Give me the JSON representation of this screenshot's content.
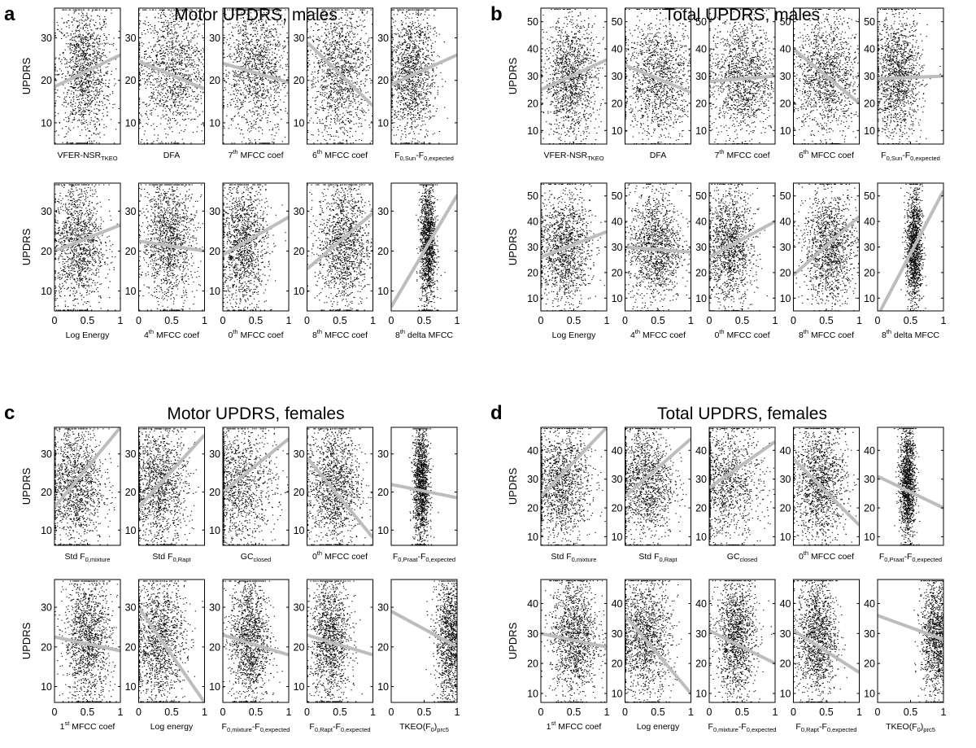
{
  "colors": {
    "points": "#000000",
    "trend": "#bdbdbd",
    "axes": "#000000"
  },
  "chart_data": [
    {
      "letter": "a",
      "title": "Motor UPDRS, males",
      "type": "scatter",
      "ylabel": "UPDRS",
      "xlim": [
        0,
        1
      ],
      "ylim": [
        5,
        37
      ],
      "xticks": [
        "0",
        "0.5",
        "1"
      ],
      "yticks": [
        10,
        20,
        30
      ],
      "rows": [
        [
          {
            "xlabel": "VFER-NSR",
            "xsub": "TKEO",
            "trend": [
              [
                0,
                18.5
              ],
              [
                1,
                26
              ]
            ],
            "cx": 0.45,
            "sx": 0.2,
            "cy": 22,
            "sy": 8
          },
          {
            "xlabel": "DFA",
            "trend": [
              [
                0,
                24.5
              ],
              [
                1,
                18
              ]
            ],
            "cx": 0.5,
            "sx": 0.28,
            "cy": 23,
            "sy": 8
          },
          {
            "xpre": "7",
            "xsup": "th",
            "xlabel": " MFCC coef",
            "trend": [
              [
                0,
                24
              ],
              [
                1,
                19.5
              ]
            ],
            "cx": 0.5,
            "sx": 0.25,
            "cy": 23,
            "sy": 8
          },
          {
            "xpre": "6",
            "xsup": "th",
            "xlabel": " MFCC coef",
            "trend": [
              [
                0,
                29
              ],
              [
                1,
                14
              ]
            ],
            "cx": 0.5,
            "sx": 0.25,
            "cy": 22,
            "sy": 8
          },
          {
            "xlabel": "F",
            "xsub": "0,Sun",
            "xlabel2": "-F",
            "xsub2": "0,expected",
            "trend": [
              [
                0,
                19
              ],
              [
                1,
                26
              ]
            ],
            "cx": 0.3,
            "sx": 0.18,
            "cy": 22,
            "sy": 8
          }
        ],
        [
          {
            "xlabel": "Log Energy",
            "trend": [
              [
                0,
                20
              ],
              [
                1,
                26.5
              ]
            ],
            "cx": 0.35,
            "sx": 0.2,
            "cy": 22,
            "sy": 8
          },
          {
            "xpre": "4",
            "xsup": "th",
            "xlabel": " MFCC coef",
            "trend": [
              [
                0,
                22.5
              ],
              [
                1,
                20
              ]
            ],
            "cx": 0.45,
            "sx": 0.2,
            "cy": 23,
            "sy": 8
          },
          {
            "xpre": "0",
            "xsup": "th",
            "xlabel": " MFCC coef",
            "trend": [
              [
                0,
                19
              ],
              [
                1,
                28.5
              ]
            ],
            "cx": 0.3,
            "sx": 0.18,
            "cy": 22,
            "sy": 8
          },
          {
            "xpre": "8",
            "xsup": "th",
            "xlabel": " MFCC coef",
            "trend": [
              [
                0,
                15.5
              ],
              [
                1,
                29.5
              ]
            ],
            "cx": 0.55,
            "sx": 0.2,
            "cy": 22,
            "sy": 8
          },
          {
            "xpre": "8",
            "xsup": "th",
            "xlabel": " delta MFCC",
            "trend": [
              [
                0,
                6
              ],
              [
                1,
                34
              ]
            ],
            "cx": 0.55,
            "sx": 0.06,
            "cy": 22,
            "sy": 8
          }
        ]
      ]
    },
    {
      "letter": "b",
      "title": "Total UPDRS, males",
      "type": "scatter",
      "ylabel": "UPDRS",
      "xlim": [
        0,
        1
      ],
      "ylim": [
        5,
        55
      ],
      "xticks": [
        "0",
        "0.5",
        "1"
      ],
      "yticks": [
        10,
        20,
        30,
        40,
        50
      ],
      "rows": [
        [
          {
            "xlabel": "VFER-NSR",
            "xsub": "TKEO",
            "trend": [
              [
                0,
                25
              ],
              [
                1,
                36
              ]
            ],
            "cx": 0.45,
            "sx": 0.2,
            "cy": 29,
            "sy": 11
          },
          {
            "xlabel": "DFA",
            "trend": [
              [
                0,
                34
              ],
              [
                1,
                24
              ]
            ],
            "cx": 0.5,
            "sx": 0.28,
            "cy": 30,
            "sy": 11
          },
          {
            "xpre": "7",
            "xsup": "th",
            "xlabel": " MFCC coef",
            "trend": [
              [
                0,
                28
              ],
              [
                1,
                30
              ]
            ],
            "cx": 0.5,
            "sx": 0.25,
            "cy": 30,
            "sy": 11
          },
          {
            "xpre": "6",
            "xsup": "th",
            "xlabel": " MFCC coef",
            "trend": [
              [
                0,
                40
              ],
              [
                1,
                20
              ]
            ],
            "cx": 0.5,
            "sx": 0.25,
            "cy": 30,
            "sy": 11
          },
          {
            "xlabel": "F",
            "xsub": "0,Sun",
            "xlabel2": "-F",
            "xsub2": "0,expected",
            "trend": [
              [
                0,
                29
              ],
              [
                1,
                30
              ]
            ],
            "cx": 0.3,
            "sx": 0.18,
            "cy": 30,
            "sy": 11
          }
        ],
        [
          {
            "xlabel": "Log Energy",
            "trend": [
              [
                0,
                26
              ],
              [
                1,
                36
              ]
            ],
            "cx": 0.35,
            "sx": 0.2,
            "cy": 30,
            "sy": 11
          },
          {
            "xpre": "4",
            "xsup": "th",
            "xlabel": " MFCC coef",
            "trend": [
              [
                0,
                30
              ],
              [
                1,
                28
              ]
            ],
            "cx": 0.45,
            "sx": 0.2,
            "cy": 30,
            "sy": 11
          },
          {
            "xpre": "0",
            "xsup": "th",
            "xlabel": " MFCC coef",
            "trend": [
              [
                0,
                26
              ],
              [
                1,
                40
              ]
            ],
            "cx": 0.3,
            "sx": 0.18,
            "cy": 30,
            "sy": 11
          },
          {
            "xpre": "8",
            "xsup": "th",
            "xlabel": " MFCC coef",
            "trend": [
              [
                0,
                19
              ],
              [
                1,
                42
              ]
            ],
            "cx": 0.55,
            "sx": 0.2,
            "cy": 30,
            "sy": 11
          },
          {
            "xpre": "8",
            "xsup": "th",
            "xlabel": " delta MFCC",
            "trend": [
              [
                0,
                3
              ],
              [
                1,
                52
              ]
            ],
            "cx": 0.55,
            "sx": 0.06,
            "cy": 30,
            "sy": 11
          }
        ]
      ]
    },
    {
      "letter": "c",
      "title": "Motor UPDRS, females",
      "type": "scatter",
      "ylabel": "UPDRS",
      "xlim": [
        0,
        1
      ],
      "ylim": [
        6,
        37
      ],
      "xticks": [
        "0",
        "0.5",
        "1"
      ],
      "yticks": [
        10,
        20,
        30
      ],
      "rows": [
        [
          {
            "xlabel": "Std F",
            "xsub": "0,mixture",
            "trend": [
              [
                0,
                16
              ],
              [
                1,
                37
              ]
            ],
            "cx": 0.3,
            "sx": 0.22,
            "cy": 22,
            "sy": 8
          },
          {
            "xlabel": "Std F",
            "xsub": "0,Rapt",
            "trend": [
              [
                0,
                16
              ],
              [
                1,
                35
              ]
            ],
            "cx": 0.3,
            "sx": 0.22,
            "cy": 22,
            "sy": 8
          },
          {
            "xlabel": "GC",
            "xsub": "closed",
            "trend": [
              [
                0,
                20
              ],
              [
                1,
                34
              ]
            ],
            "cx": 0.2,
            "sx": 0.3,
            "cy": 22,
            "sy": 8
          },
          {
            "xpre": "0",
            "xsup": "th",
            "xlabel": " MFCC coef",
            "trend": [
              [
                0,
                29
              ],
              [
                1,
                8
              ]
            ],
            "cx": 0.4,
            "sx": 0.2,
            "cy": 22,
            "sy": 8
          },
          {
            "xlabel": "F",
            "xsub": "0,Praat",
            "xlabel2": "-F",
            "xsub2": "0,expected",
            "trend": [
              [
                0,
                22
              ],
              [
                1,
                18.5
              ]
            ],
            "cx": 0.45,
            "sx": 0.06,
            "cy": 22,
            "sy": 8
          }
        ],
        [
          {
            "xpre": "1",
            "xsup": "st",
            "xlabel": " MFCC coef",
            "trend": [
              [
                0,
                22.5
              ],
              [
                1,
                19
              ]
            ],
            "cx": 0.5,
            "sx": 0.18,
            "cy": 22,
            "sy": 8
          },
          {
            "xlabel": "Log energy",
            "trend": [
              [
                0,
                30
              ],
              [
                1,
                6
              ]
            ],
            "cx": 0.3,
            "sx": 0.2,
            "cy": 22,
            "sy": 8
          },
          {
            "xlabel": "F",
            "xsub": "0,mixture",
            "xlabel2": "-F",
            "xsub2": "0,expected",
            "trend": [
              [
                0,
                23
              ],
              [
                1,
                18
              ]
            ],
            "cx": 0.4,
            "sx": 0.15,
            "cy": 22,
            "sy": 8
          },
          {
            "xlabel": "F",
            "xsub": "0,Rapt",
            "xlabel2": "-F",
            "xsub2": "0,expected",
            "trend": [
              [
                0,
                23
              ],
              [
                1,
                18
              ]
            ],
            "cx": 0.35,
            "sx": 0.15,
            "cy": 22,
            "sy": 8
          },
          {
            "xlabel": "TKEO(F",
            "xsub": "0",
            "xlabel2": ")",
            "xsub2": "prc5",
            "trend": [
              [
                0,
                29
              ],
              [
                1,
                20
              ]
            ],
            "cx": 0.9,
            "sx": 0.12,
            "cy": 22,
            "sy": 8
          }
        ]
      ]
    },
    {
      "letter": "d",
      "title": "Total UPDRS, females",
      "type": "scatter",
      "ylabel": "UPDRS",
      "xlim": [
        0,
        1
      ],
      "ylim": [
        7,
        48
      ],
      "xticks": [
        "0",
        "0.5",
        "1"
      ],
      "yticks": [
        10,
        20,
        30,
        40
      ],
      "rows": [
        [
          {
            "xlabel": "Std F",
            "xsub": "0,mixture",
            "trend": [
              [
                0,
                24
              ],
              [
                1,
                48
              ]
            ],
            "cx": 0.3,
            "sx": 0.22,
            "cy": 29,
            "sy": 10
          },
          {
            "xlabel": "Std F",
            "xsub": "0,Rapt",
            "trend": [
              [
                0,
                24
              ],
              [
                1,
                44
              ]
            ],
            "cx": 0.3,
            "sx": 0.22,
            "cy": 29,
            "sy": 10
          },
          {
            "xlabel": "GC",
            "xsub": "closed",
            "trend": [
              [
                0,
                27
              ],
              [
                1,
                43
              ]
            ],
            "cx": 0.2,
            "sx": 0.3,
            "cy": 29,
            "sy": 10
          },
          {
            "xpre": "0",
            "xsup": "th",
            "xlabel": " MFCC coef",
            "trend": [
              [
                0,
                37
              ],
              [
                1,
                14
              ]
            ],
            "cx": 0.4,
            "sx": 0.2,
            "cy": 29,
            "sy": 10
          },
          {
            "xlabel": "F",
            "xsub": "0,Praat",
            "xlabel2": "-F",
            "xsub2": "0,expected",
            "trend": [
              [
                0,
                31
              ],
              [
                1,
                20
              ]
            ],
            "cx": 0.45,
            "sx": 0.06,
            "cy": 29,
            "sy": 10
          }
        ],
        [
          {
            "xpre": "1",
            "xsup": "st",
            "xlabel": " MFCC coef",
            "trend": [
              [
                0,
                30
              ],
              [
                1,
                25.5
              ]
            ],
            "cx": 0.5,
            "sx": 0.18,
            "cy": 29,
            "sy": 10
          },
          {
            "xlabel": "Log energy",
            "trend": [
              [
                0,
                36
              ],
              [
                1,
                10
              ]
            ],
            "cx": 0.3,
            "sx": 0.2,
            "cy": 29,
            "sy": 10
          },
          {
            "xlabel": "F",
            "xsub": "0,mixture",
            "xlabel2": "-F",
            "xsub2": "0,expected",
            "trend": [
              [
                0,
                31
              ],
              [
                1,
                20
              ]
            ],
            "cx": 0.4,
            "sx": 0.15,
            "cy": 29,
            "sy": 10
          },
          {
            "xlabel": "F",
            "xsub": "0,Rapt",
            "xlabel2": "-F",
            "xsub2": "0,expected",
            "trend": [
              [
                0,
                31
              ],
              [
                1,
                17
              ]
            ],
            "cx": 0.35,
            "sx": 0.15,
            "cy": 29,
            "sy": 10
          },
          {
            "xlabel": "TKEO(F",
            "xsub": "0",
            "xlabel2": ")",
            "xsub2": "prc5",
            "trend": [
              [
                0,
                36
              ],
              [
                1,
                28
              ]
            ],
            "cx": 0.9,
            "sx": 0.12,
            "cy": 29,
            "sy": 10
          }
        ]
      ]
    }
  ]
}
